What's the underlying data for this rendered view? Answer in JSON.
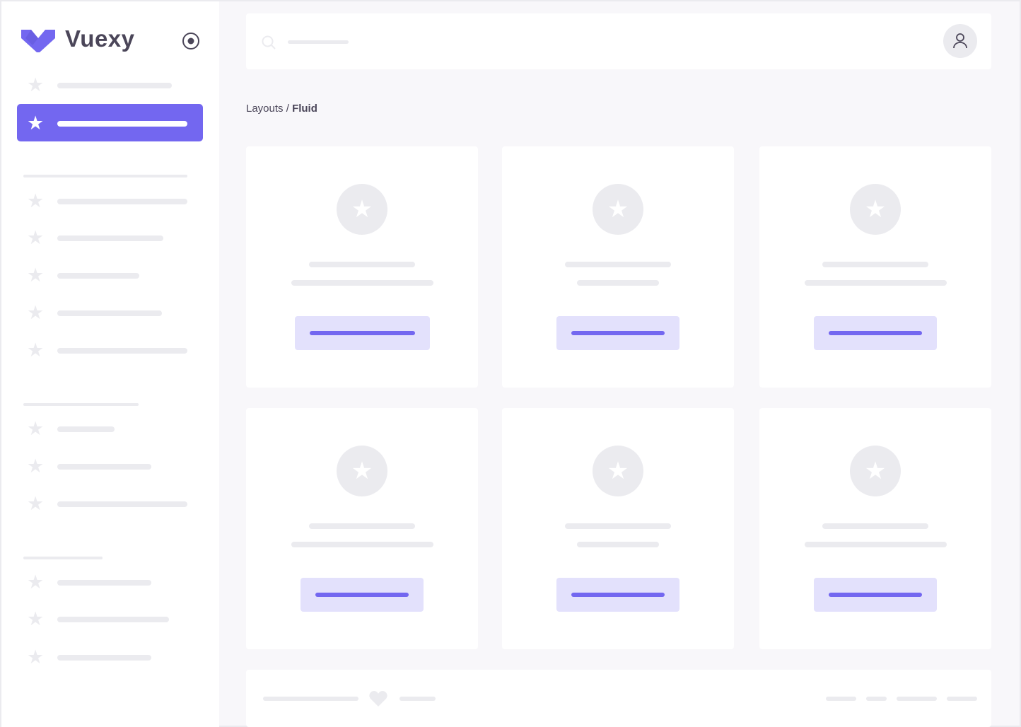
{
  "sidebar": {
    "brand": "Vuexy",
    "brand_color": "#7367F0",
    "active_index": 1
  },
  "breadcrumb": {
    "parent": "Layouts",
    "separator": " / ",
    "current": "Fluid"
  },
  "colors": {
    "accent": "#7367F0",
    "accent_light": "#E3E1FC",
    "skeleton": "#EBEBEF",
    "background": "#F8F7FA"
  },
  "icons": {
    "search": "search-icon",
    "user": "user-icon",
    "card": "star-icon",
    "footer": "heart-icon",
    "toggle": "radio-circle-icon"
  }
}
